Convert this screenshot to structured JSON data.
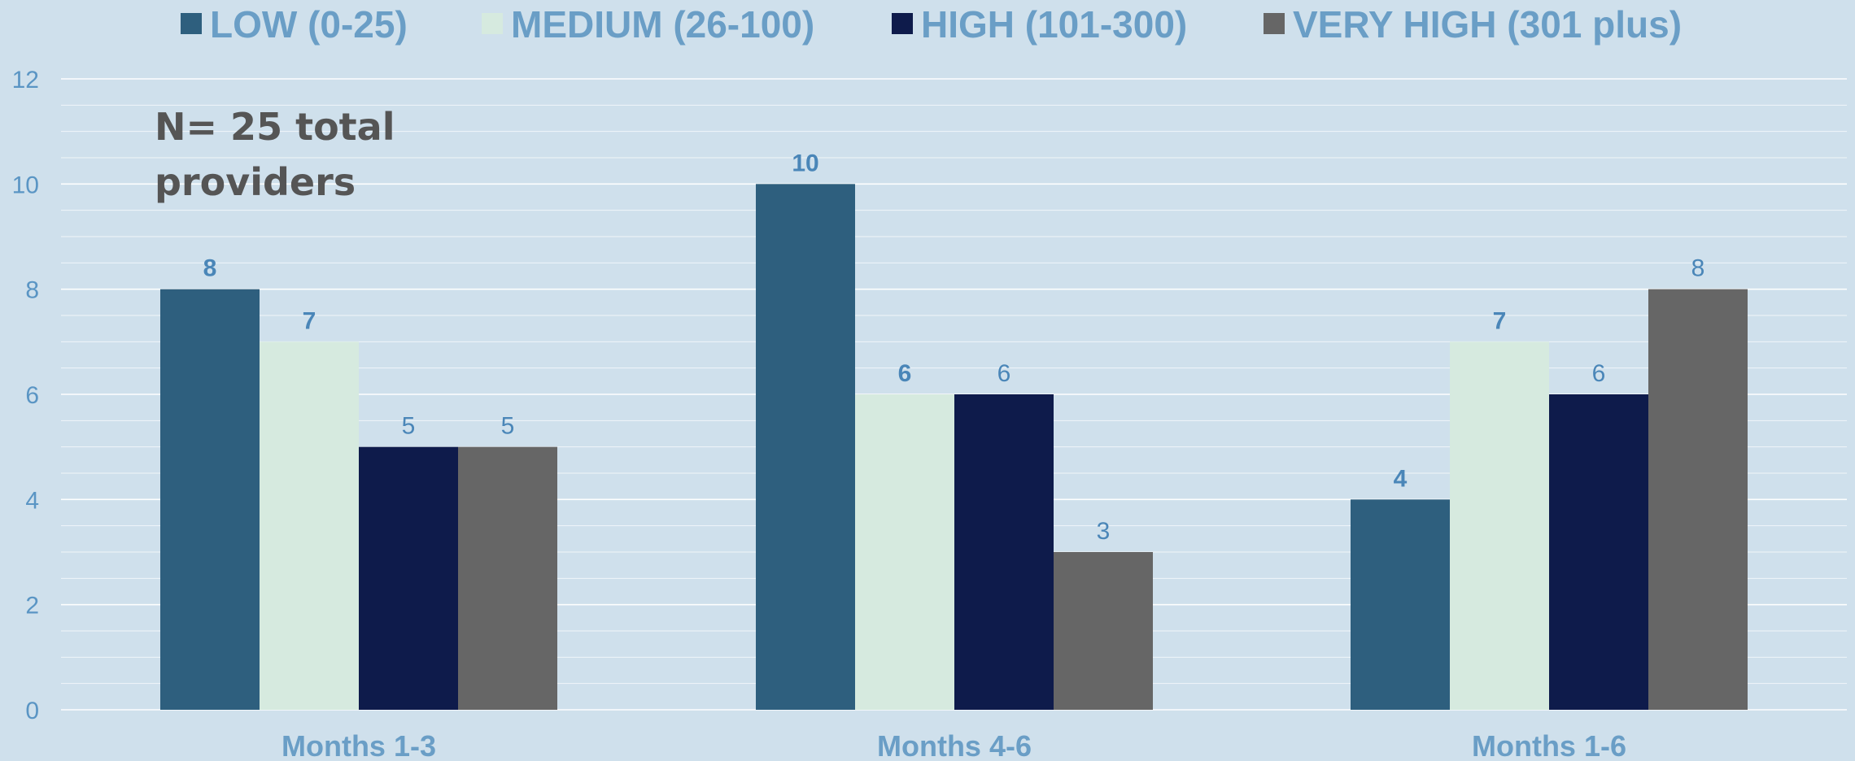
{
  "chart_data": {
    "type": "bar",
    "categories": [
      "Months 1-3",
      "Months 4-6",
      "Months 1-6"
    ],
    "series": [
      {
        "name": "LOW (0-25)",
        "color": "#2e5f7e",
        "values": [
          8,
          10,
          4
        ],
        "label_bold": true
      },
      {
        "name": "MEDIUM (26-100)",
        "color": "#d6eadf",
        "values": [
          7,
          6,
          7
        ],
        "label_bold": true
      },
      {
        "name": "HIGH (101-300)",
        "color": "#0e1b4b",
        "values": [
          5,
          6,
          6
        ],
        "label_bold": false
      },
      {
        "name": "VERY HIGH (301 plus)",
        "color": "#666666",
        "values": [
          5,
          3,
          8
        ],
        "label_bold": false
      }
    ],
    "ylim": [
      0,
      12
    ],
    "yticks": [
      "0",
      "2",
      "4",
      "6",
      "8",
      "10",
      "12"
    ],
    "grid": true,
    "legend_position": "top",
    "annotation": [
      "N= 25 total",
      "providers"
    ],
    "colors": {
      "background": "#cfe0ec",
      "gridline": "#ffffff",
      "text": "#6a9ec6"
    }
  }
}
